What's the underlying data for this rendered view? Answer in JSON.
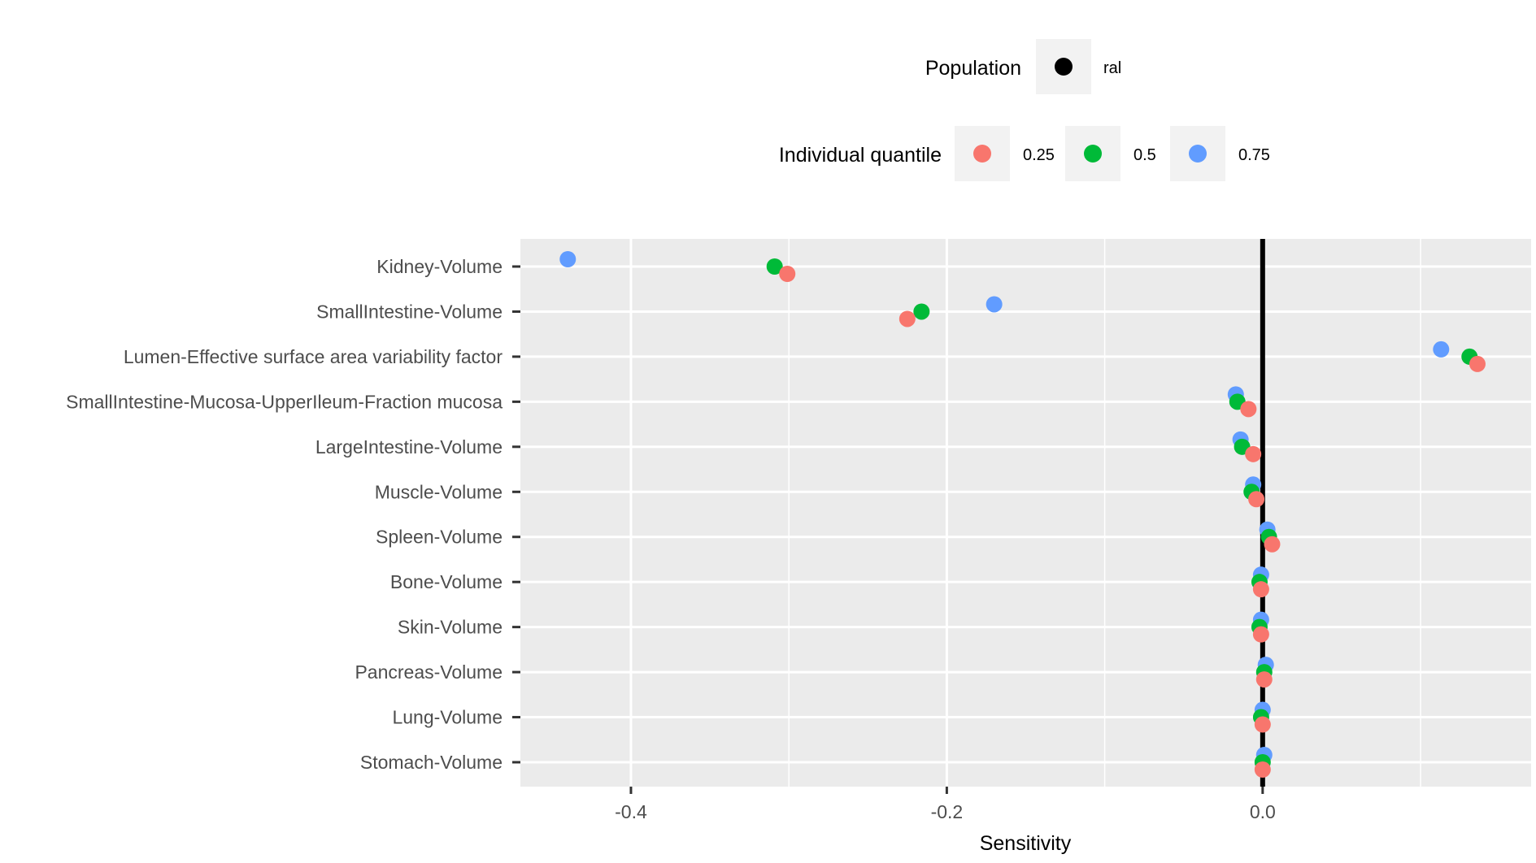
{
  "chart_data": {
    "type": "scatter",
    "title": "",
    "xlabel": "Sensitivity",
    "ylabel": "",
    "xlim": [
      -0.47,
      0.17
    ],
    "x_ticks": [
      -0.4,
      -0.2,
      0.0
    ],
    "x_tick_labels": [
      "-0.4",
      "-0.2",
      "0.0"
    ],
    "grid": true,
    "reference_line_x": 0.0,
    "categories": [
      "Kidney-Volume",
      "SmallIntestine-Volume",
      "Lumen-Effective surface area variability factor",
      "SmallIntestine-Mucosa-UpperIleum-Fraction mucosa",
      "LargeIntestine-Volume",
      "Muscle-Volume",
      "Spleen-Volume",
      "Bone-Volume",
      "Skin-Volume",
      "Pancreas-Volume",
      "Lung-Volume",
      "Stomach-Volume"
    ],
    "legend": {
      "placement": "top",
      "population": {
        "title": "Population",
        "entries": [
          {
            "label": "ral",
            "color": "#000000"
          }
        ]
      },
      "quantile": {
        "title": "Individual quantile",
        "entries": [
          {
            "label": "0.25",
            "color": "#F8766D"
          },
          {
            "label": "0.5",
            "color": "#00BA38"
          },
          {
            "label": "0.75",
            "color": "#619CFF"
          }
        ]
      }
    },
    "series": [
      {
        "name": "0.75",
        "color": "#619CFF",
        "values": [
          -0.44,
          -0.17,
          0.113,
          -0.017,
          -0.014,
          -0.006,
          0.003,
          -0.001,
          -0.001,
          0.002,
          0.0,
          0.001
        ]
      },
      {
        "name": "0.5",
        "color": "#00BA38",
        "values": [
          -0.309,
          -0.216,
          0.131,
          -0.016,
          -0.013,
          -0.007,
          0.004,
          -0.002,
          -0.002,
          0.001,
          -0.001,
          0.0
        ]
      },
      {
        "name": "0.25",
        "color": "#F8766D",
        "values": [
          -0.301,
          -0.225,
          0.136,
          -0.009,
          -0.006,
          -0.004,
          0.006,
          -0.001,
          -0.001,
          0.001,
          0.0,
          0.0
        ]
      }
    ]
  }
}
